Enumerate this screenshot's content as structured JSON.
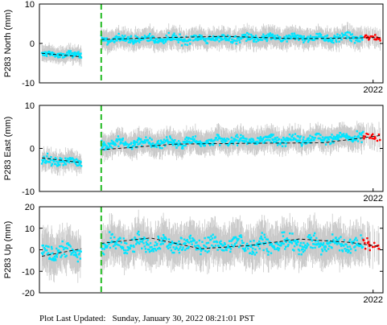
{
  "footer": {
    "label": "Plot Last Updated:",
    "timestamp": "Sunday, January 30, 2022 08:21:01 PST"
  },
  "colors": {
    "gap_data": "#00e5ff",
    "recent_data": "#ff0000",
    "error_bars": "#c8c8c8",
    "model_line": "#000000",
    "offset_marker": "#22bb22"
  },
  "chart_data": [
    {
      "type": "scatter",
      "ylabel": "P283 North (mm)",
      "ylim": [
        -10,
        10
      ],
      "yticks": [
        -10,
        0,
        10
      ],
      "x_tick_label": "2022",
      "x_range": [
        2008.5,
        2022.4
      ],
      "offset_event_x": 2011.0,
      "recent_start_x": 2021.6,
      "segments": [
        {
          "x_start": 2008.6,
          "x_end": 2010.2,
          "mean": -2.8,
          "trend": -0.1,
          "spread": 1.0
        },
        {
          "x_start": 2011.0,
          "x_end": 2022.3,
          "mean": 1.0,
          "trend": 0.05,
          "spread": 1.2
        }
      ],
      "model_line": [
        [
          2008.6,
          -2.5
        ],
        [
          2010.2,
          -3.4
        ],
        [
          2011.0,
          1.0
        ],
        [
          2013.0,
          1.4
        ],
        [
          2016.0,
          1.8
        ],
        [
          2019.0,
          1.2
        ],
        [
          2022.3,
          1.5
        ]
      ]
    },
    {
      "type": "scatter",
      "ylabel": "P283 East (mm)",
      "ylim": [
        -10,
        10
      ],
      "yticks": [
        -10,
        0,
        10
      ],
      "x_tick_label": "2022",
      "x_range": [
        2008.5,
        2022.4
      ],
      "offset_event_x": 2011.0,
      "recent_start_x": 2021.6,
      "segments": [
        {
          "x_start": 2008.6,
          "x_end": 2010.2,
          "mean": -2.8,
          "trend": -0.2,
          "spread": 1.1
        },
        {
          "x_start": 2011.0,
          "x_end": 2022.3,
          "mean": 1.0,
          "trend": 0.15,
          "spread": 1.3
        }
      ],
      "model_line": [
        [
          2008.6,
          -2.2
        ],
        [
          2010.2,
          -3.3
        ],
        [
          2011.0,
          -0.3
        ],
        [
          2014.0,
          1.0
        ],
        [
          2017.0,
          1.2
        ],
        [
          2020.0,
          1.3
        ],
        [
          2022.3,
          3.0
        ]
      ]
    },
    {
      "type": "scatter",
      "ylabel": "P283 Up (mm)",
      "ylim": [
        -20,
        20
      ],
      "yticks": [
        -20,
        -10,
        0,
        10,
        20
      ],
      "x_tick_label": "2022",
      "x_range": [
        2008.5,
        2022.4
      ],
      "offset_event_x": 2011.0,
      "recent_start_x": 2021.6,
      "segments": [
        {
          "x_start": 2008.6,
          "x_end": 2010.2,
          "mean": -1.0,
          "trend": 0.3,
          "spread": 4.5
        },
        {
          "x_start": 2011.0,
          "x_end": 2022.3,
          "mean": 2.5,
          "trend": 0.0,
          "spread": 4.5
        }
      ],
      "model_line": [
        [
          2008.6,
          -3.0
        ],
        [
          2010.2,
          0.5
        ],
        [
          2011.0,
          3.0
        ],
        [
          2013.0,
          5.5
        ],
        [
          2015.0,
          0.5
        ],
        [
          2017.0,
          2.0
        ],
        [
          2019.0,
          5.0
        ],
        [
          2021.0,
          3.5
        ],
        [
          2022.3,
          1.5
        ]
      ]
    }
  ]
}
